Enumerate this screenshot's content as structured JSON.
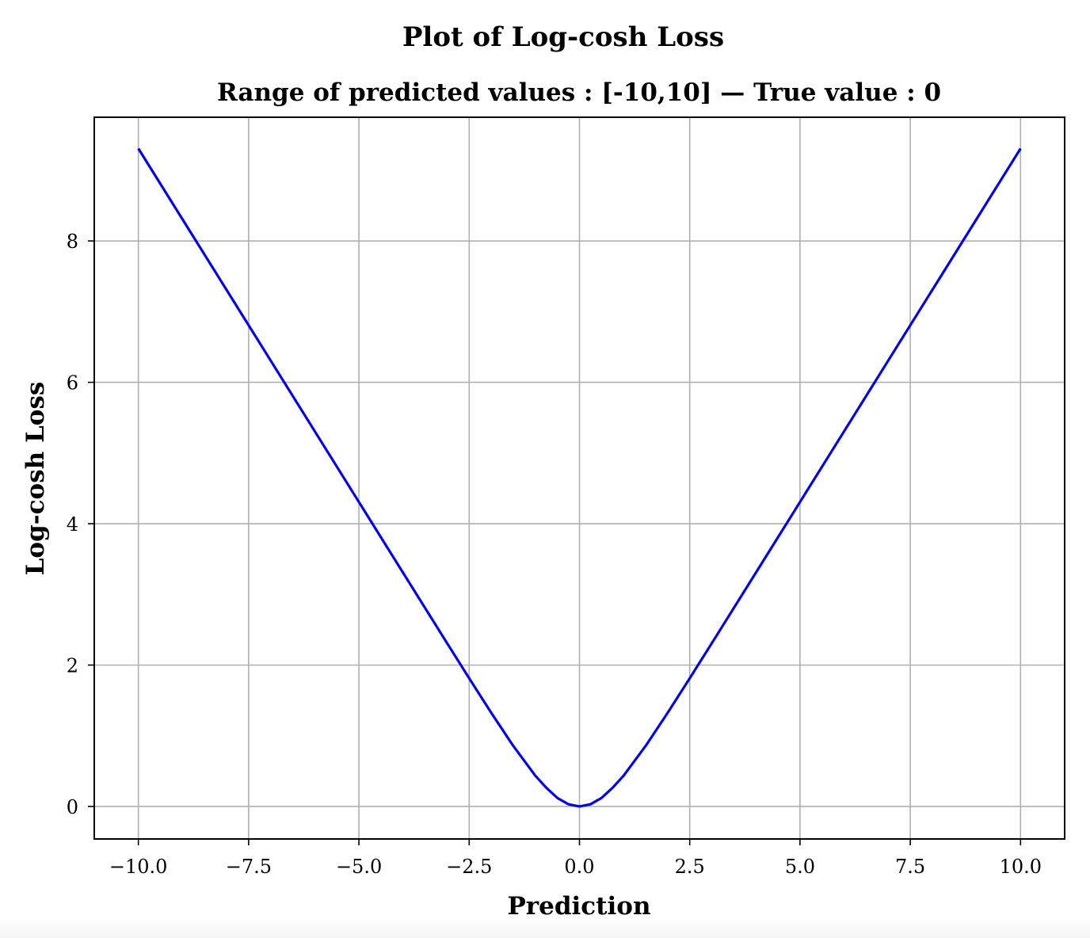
{
  "chart_data": {
    "type": "line",
    "suptitle": "Plot of Log-cosh Loss",
    "title": "Range of predicted values : [-10,10] — True value : 0",
    "xlabel": "Prediction",
    "ylabel": "Log-cosh Loss",
    "xlim": [
      -11.0,
      11.0
    ],
    "ylim": [
      -0.46,
      9.75
    ],
    "grid": true,
    "xticks": [
      -10.0,
      -7.5,
      -5.0,
      -2.5,
      0.0,
      2.5,
      5.0,
      7.5,
      10.0
    ],
    "xtick_labels": [
      "−10.0",
      "−7.5",
      "−5.0",
      "−2.5",
      "0.0",
      "2.5",
      "5.0",
      "7.5",
      "10.0"
    ],
    "yticks": [
      0,
      2,
      4,
      6,
      8
    ],
    "ytick_labels": [
      "0",
      "2",
      "4",
      "6",
      "8"
    ],
    "series": [
      {
        "name": "log-cosh loss",
        "color": "#0000ee",
        "x": [
          -10,
          -9,
          -8,
          -7,
          -6,
          -5,
          -4,
          -3,
          -2.5,
          -2,
          -1.5,
          -1,
          -0.75,
          -0.5,
          -0.25,
          0,
          0.25,
          0.5,
          0.75,
          1,
          1.5,
          2,
          2.5,
          3,
          4,
          5,
          6,
          7,
          8,
          9,
          10
        ],
        "y": [
          9.307,
          8.307,
          7.307,
          6.307,
          5.307,
          4.307,
          3.307,
          2.309,
          1.813,
          1.325,
          0.856,
          0.434,
          0.264,
          0.12,
          0.031,
          0.0,
          0.031,
          0.12,
          0.264,
          0.434,
          0.856,
          1.325,
          1.813,
          2.309,
          3.307,
          4.307,
          5.307,
          6.307,
          7.307,
          8.307,
          9.307
        ]
      }
    ]
  }
}
